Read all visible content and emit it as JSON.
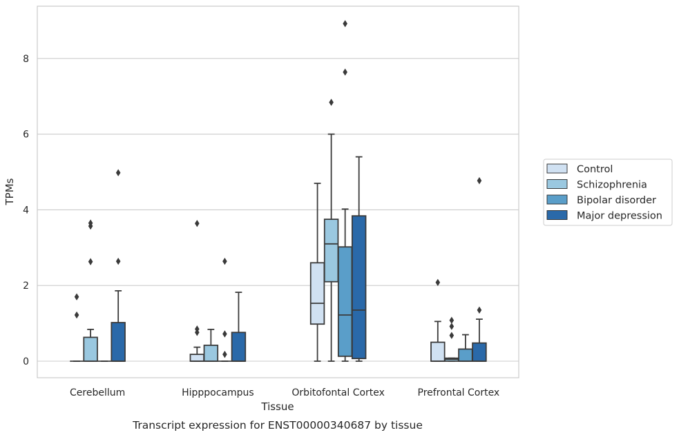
{
  "caption": "Transcript expression for ENST00000340687 by tissue",
  "chart_data": {
    "type": "box",
    "title": "",
    "xlabel": "Tissue",
    "ylabel": "TPMs",
    "ylim": [
      -0.45,
      9.4
    ],
    "yticks": [
      0,
      2,
      4,
      6,
      8
    ],
    "grid": "horizontal",
    "legend_position": "right",
    "categories": [
      "Cerebellum",
      "Hipppocampus",
      "Orbitofontal Cortex",
      "Prefrontal Cortex"
    ],
    "series": [
      {
        "name": "Control",
        "color": "#d0e1f2",
        "boxes": [
          {
            "q1": 0,
            "median": 0,
            "q3": 0,
            "whisker_low": 0,
            "whisker_high": 0,
            "outliers": [
              1.22,
              1.7
            ]
          },
          {
            "q1": 0,
            "median": 0,
            "q3": 0.18,
            "whisker_low": 0,
            "whisker_high": 0.37,
            "outliers": [
              0.76,
              0.85,
              3.64
            ]
          },
          {
            "q1": 0.98,
            "median": 1.53,
            "q3": 2.6,
            "whisker_low": 0,
            "whisker_high": 4.7,
            "outliers": []
          },
          {
            "q1": 0,
            "median": 0,
            "q3": 0.5,
            "whisker_low": 0,
            "whisker_high": 1.05,
            "outliers": [
              2.08
            ]
          }
        ]
      },
      {
        "name": "Schizophrenia",
        "color": "#9ac8e0",
        "boxes": [
          {
            "q1": 0,
            "median": 0,
            "q3": 0.63,
            "whisker_low": 0,
            "whisker_high": 0.84,
            "outliers": [
              2.63,
              3.57,
              3.65
            ]
          },
          {
            "q1": 0,
            "median": 0,
            "q3": 0.42,
            "whisker_low": 0,
            "whisker_high": 0.84,
            "outliers": []
          },
          {
            "q1": 2.1,
            "median": 3.1,
            "q3": 3.75,
            "whisker_low": 0,
            "whisker_high": 6.0,
            "outliers": [
              6.84
            ]
          },
          {
            "q1": 0,
            "median": 0.05,
            "q3": 0.08,
            "whisker_low": 0,
            "whisker_high": 0.08,
            "outliers": [
              0.68,
              0.92,
              1.08
            ]
          }
        ]
      },
      {
        "name": "Bipolar disorder",
        "color": "#5a9ec9",
        "boxes": [
          {
            "q1": 0,
            "median": 0,
            "q3": 0,
            "whisker_low": 0,
            "whisker_high": 0,
            "outliers": []
          },
          {
            "q1": 0,
            "median": 0,
            "q3": 0,
            "whisker_low": 0,
            "whisker_high": 0,
            "outliers": [
              0.18,
              0.72,
              2.64
            ]
          },
          {
            "q1": 0.13,
            "median": 1.22,
            "q3": 3.02,
            "whisker_low": 0,
            "whisker_high": 4.02,
            "outliers": [
              7.64,
              8.92
            ]
          },
          {
            "q1": 0,
            "median": 0,
            "q3": 0.32,
            "whisker_low": 0,
            "whisker_high": 0.7,
            "outliers": []
          }
        ]
      },
      {
        "name": "Major depression",
        "color": "#2a69a9",
        "boxes": [
          {
            "q1": 0,
            "median": 0,
            "q3": 1.02,
            "whisker_low": 0,
            "whisker_high": 1.86,
            "outliers": [
              2.64,
              4.98
            ]
          },
          {
            "q1": 0,
            "median": 0,
            "q3": 0.76,
            "whisker_low": 0,
            "whisker_high": 1.82,
            "outliers": []
          },
          {
            "q1": 0.07,
            "median": 1.35,
            "q3": 3.84,
            "whisker_low": 0,
            "whisker_high": 5.4,
            "outliers": []
          },
          {
            "q1": 0,
            "median": 0,
            "q3": 0.48,
            "whisker_low": 0,
            "whisker_high": 1.11,
            "outliers": [
              1.35,
              4.77
            ]
          }
        ]
      }
    ]
  }
}
